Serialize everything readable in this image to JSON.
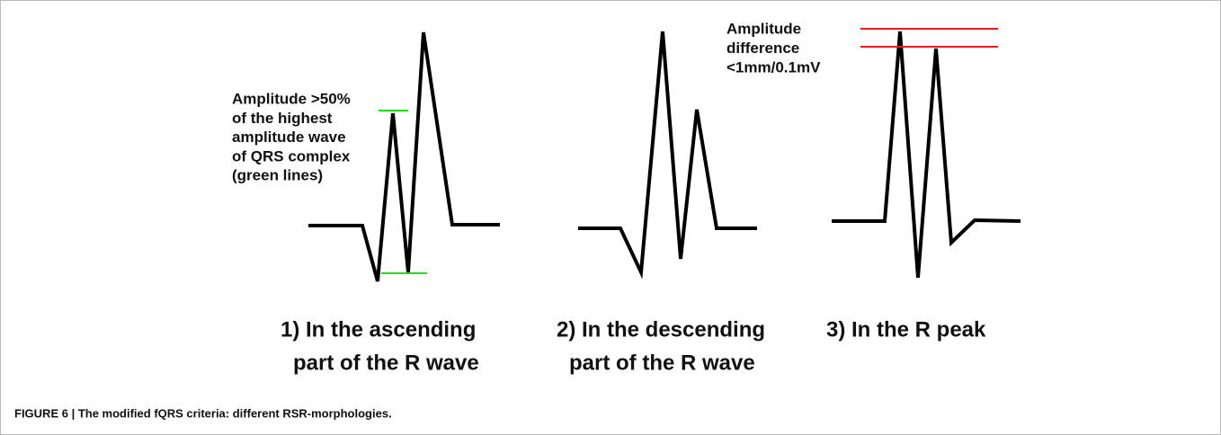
{
  "figure": {
    "annotations": [
      {
        "lines": [
          "Amplitude >50%",
          "of the highest",
          "amplitude wave",
          "of QRS complex",
          "(green lines)"
        ]
      },
      {
        "lines": [
          "Amplitude",
          "difference",
          "<1mm/0.1mV"
        ]
      }
    ],
    "panels": [
      {
        "lines": [
          "1) In the ascending",
          "part of the R wave"
        ]
      },
      {
        "lines": [
          "2) In the descending",
          "part of the R wave"
        ]
      },
      {
        "lines": [
          "3) In the R peak"
        ]
      }
    ],
    "caption": "FIGURE 6 | The modified fQRS criteria: different RSR-morphologies."
  }
}
